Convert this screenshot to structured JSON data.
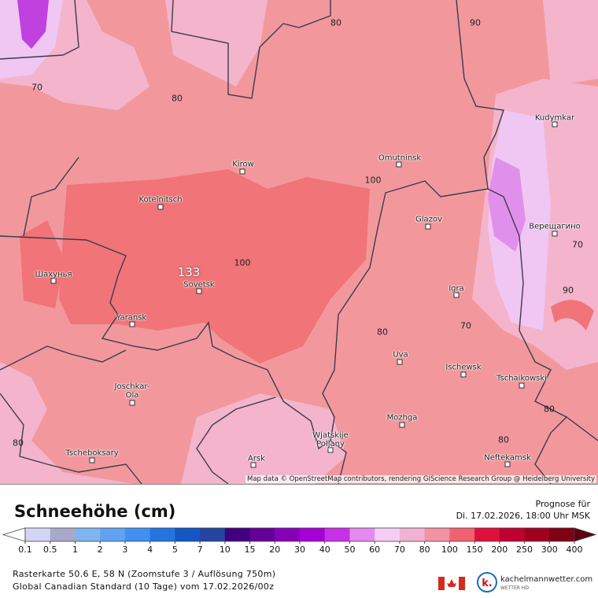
{
  "map": {
    "cities": [
      "Kudymkar",
      "Omutninsk",
      "Kirow",
      "Kotelnitsch",
      "Glazov",
      "Верещагино",
      "Шахунья",
      "Sovetsk",
      "Igra",
      "Yaransk",
      "Uva",
      "Ischewsk",
      "Tschaikowski",
      "Joschkar-\nOla",
      "Mozhga",
      "Wjatskije\nPoljany",
      "Tscheboksary",
      "Arsk",
      "Neftekamsk"
    ],
    "contour_labels": [
      "70",
      "80",
      "80",
      "90",
      "100",
      "100",
      "70",
      "90",
      "70",
      "80",
      "80",
      "80",
      "80"
    ],
    "max_label": "133",
    "attribution": "Map data © OpenStreetMap contributors, rendering GIScience Research Group @ Heidelberg University"
  },
  "legend": {
    "title": "Schneehöhe (cm)",
    "forecast_label": "Prognose für",
    "forecast_time": "Di. 17.02.2026, 18:00 Uhr MSK",
    "scale": [
      "0.1",
      "0.5",
      "1",
      "2",
      "3",
      "4",
      "5",
      "7",
      "10",
      "15",
      "20",
      "30",
      "40",
      "50",
      "60",
      "70",
      "80",
      "100",
      "150",
      "200",
      "250",
      "300",
      "400"
    ],
    "colors": [
      "#d4d4f4",
      "#a8a8c8",
      "#80b4f0",
      "#60a2f0",
      "#4090f0",
      "#2474e0",
      "#1456c4",
      "#2444a0",
      "#400080",
      "#640098",
      "#8600b8",
      "#a600d6",
      "#c630e6",
      "#e488f2",
      "#f4ccf4",
      "#f2b2d2",
      "#f292a2",
      "#f06270",
      "#e0103c",
      "#c00030",
      "#a00020",
      "#800014"
    ],
    "low_color": "#ffffff",
    "high_color": "#5c0010"
  },
  "footer": {
    "line1": "Rasterkarte 50.6 E, 58 N (Zoomstufe 3 / Auflösung 750m)",
    "line2": "Global Canadian Standard (10 Tage) vom  17.02.2026/00z",
    "brand": "kachelmannwetter.com",
    "brand_sub": "WETTER HD"
  }
}
